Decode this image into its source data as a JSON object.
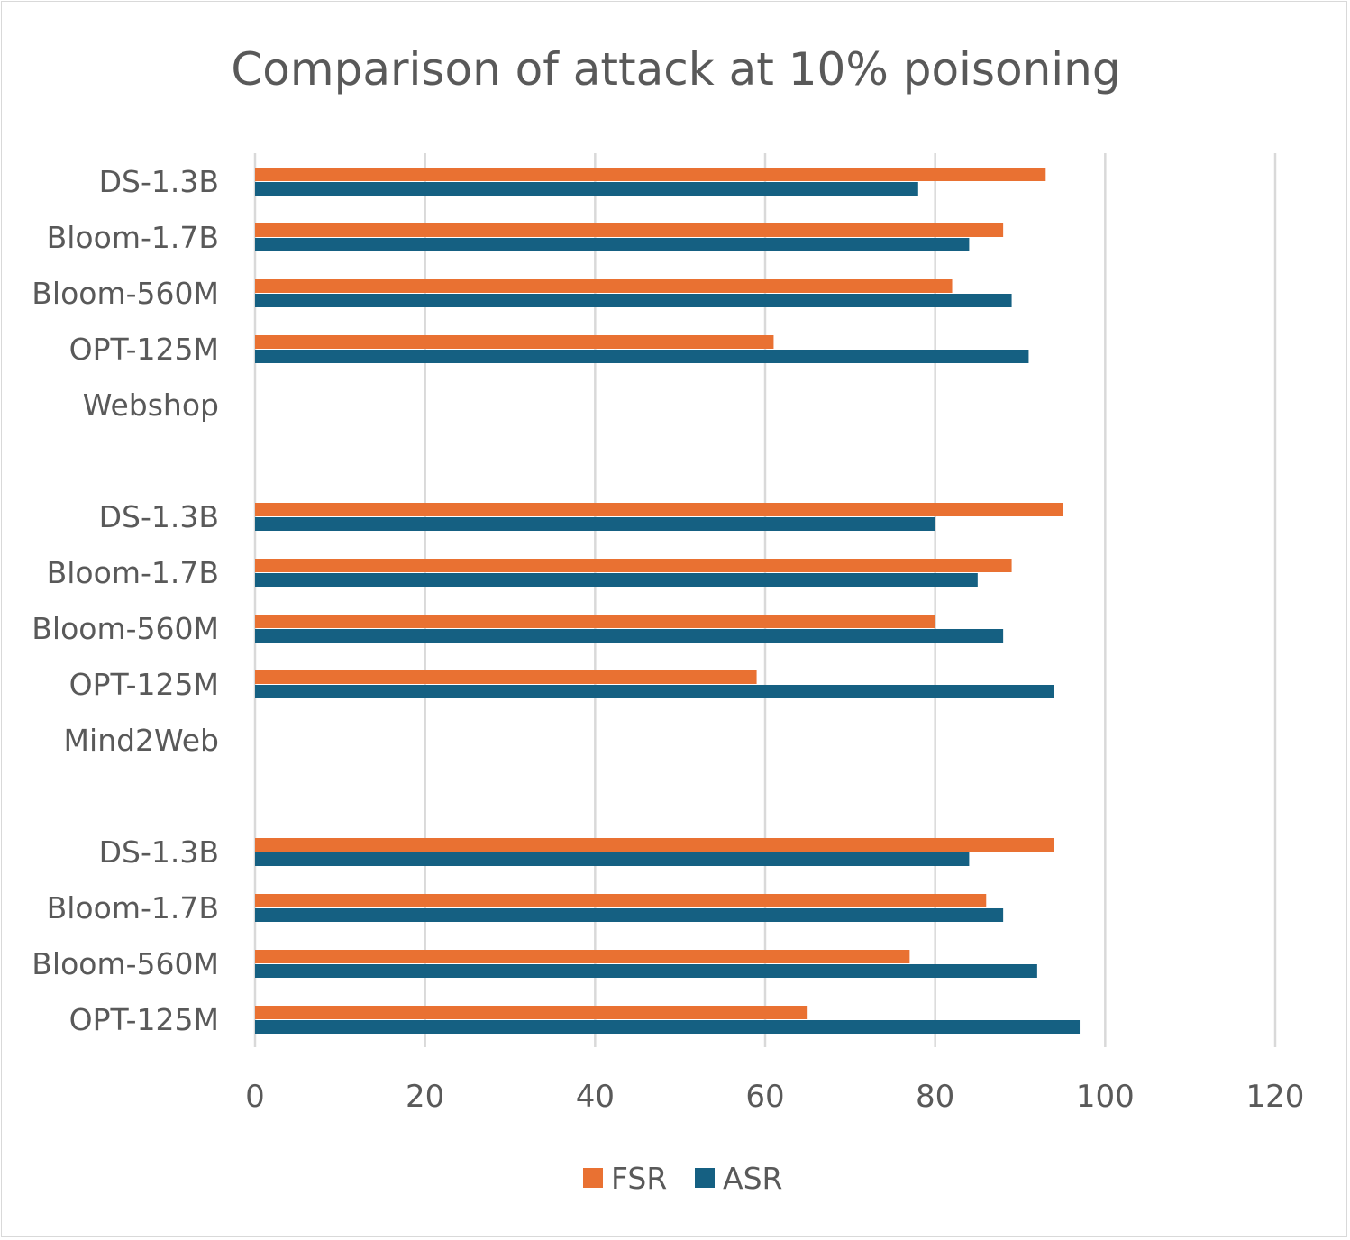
{
  "chart_data": {
    "type": "bar",
    "orientation": "horizontal",
    "title": "Comparison of attack at 10% poisoning",
    "xlabel": "",
    "ylabel": "",
    "xlim": [
      0,
      120
    ],
    "xticks": [
      0,
      20,
      40,
      60,
      80,
      100,
      120
    ],
    "grid": true,
    "legend_position": "bottom",
    "categories": [
      "DS-1.3B",
      "Bloom-1.7B",
      "Bloom-560M",
      "OPT-125M",
      "Webshop",
      "",
      "DS-1.3B",
      "Bloom-1.7B",
      "Bloom-560M",
      "OPT-125M",
      "Mind2Web",
      "",
      "DS-1.3B",
      "Bloom-1.7B",
      "Bloom-560M",
      "OPT-125M"
    ],
    "series": [
      {
        "name": "FSR",
        "color": "#E97132",
        "values": [
          93,
          88,
          82,
          61,
          null,
          null,
          95,
          89,
          80,
          59,
          null,
          null,
          94,
          86,
          77,
          65
        ]
      },
      {
        "name": "ASR",
        "color": "#156082",
        "values": [
          78,
          84,
          89,
          91,
          null,
          null,
          80,
          85,
          88,
          94,
          null,
          null,
          84,
          88,
          92,
          97
        ]
      }
    ]
  }
}
